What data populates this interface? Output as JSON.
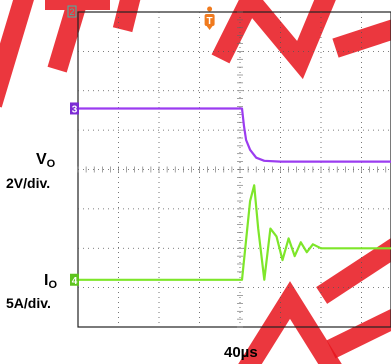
{
  "watermark": {
    "text": "PRODUCT PREVIEW",
    "color": "#e8141c"
  },
  "trigger_marker": {
    "glyph": "T",
    "color": "#f07a1e"
  },
  "ref_marker": {
    "glyph": "2",
    "color": "#3cb8a8"
  },
  "labels": {
    "vo_name": "V",
    "vo_sub": "O",
    "vo_scale": "2V/div.",
    "io_name": "I",
    "io_sub": "O",
    "io_scale": "5A/div.",
    "time_scale": "40µs"
  },
  "chart_data": {
    "type": "line",
    "title": "",
    "xlabel": "40µs",
    "xlim": [
      0,
      10
    ],
    "ylim": [
      -4,
      4
    ],
    "grid": true,
    "x_units": "divisions (40µs/div)",
    "y_units": "divisions",
    "series": [
      {
        "name": "VO",
        "channel": "3",
        "scale": "2V/div.",
        "color": "#9b3cf0",
        "marker_color": "#7c2bd4",
        "points": [
          [
            0,
            1.55
          ],
          [
            4.05,
            1.55
          ],
          [
            4.1,
            1.1
          ],
          [
            4.15,
            0.75
          ],
          [
            4.25,
            0.5
          ],
          [
            4.4,
            0.3
          ],
          [
            4.6,
            0.22
          ],
          [
            5.0,
            0.2
          ],
          [
            10,
            0.2
          ]
        ]
      },
      {
        "name": "IO",
        "channel": "4",
        "scale": "5A/div.",
        "color": "#7ee62a",
        "marker_color": "#5ec41e",
        "points": [
          [
            0,
            -2.8
          ],
          [
            4.05,
            -2.8
          ],
          [
            4.25,
            -0.8
          ],
          [
            4.35,
            -0.4
          ],
          [
            4.45,
            -1.5
          ],
          [
            4.6,
            -2.8
          ],
          [
            4.75,
            -1.5
          ],
          [
            4.9,
            -1.7
          ],
          [
            5.05,
            -2.3
          ],
          [
            5.2,
            -1.75
          ],
          [
            5.35,
            -2.2
          ],
          [
            5.5,
            -1.85
          ],
          [
            5.65,
            -2.1
          ],
          [
            5.8,
            -1.9
          ],
          [
            6.0,
            -2.0
          ],
          [
            10,
            -2.0
          ]
        ]
      }
    ]
  }
}
